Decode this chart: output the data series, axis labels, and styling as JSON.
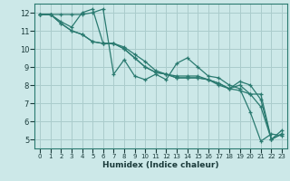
{
  "title": "",
  "xlabel": "Humidex (Indice chaleur)",
  "background_color": "#cce8e8",
  "grid_color": "#aacccc",
  "line_color": "#2a7a70",
  "xlim": [
    -0.5,
    23.5
  ],
  "ylim": [
    4.5,
    12.5
  ],
  "xticks": [
    0,
    1,
    2,
    3,
    4,
    5,
    6,
    7,
    8,
    9,
    10,
    11,
    12,
    13,
    14,
    15,
    16,
    17,
    18,
    19,
    20,
    21,
    22,
    23
  ],
  "yticks": [
    5,
    6,
    7,
    8,
    9,
    10,
    11,
    12
  ],
  "series": [
    {
      "x": [
        0,
        1,
        2,
        3,
        4,
        5,
        6,
        7,
        8,
        9,
        10,
        11,
        12,
        13,
        14,
        15,
        16,
        17,
        18,
        19,
        20,
        21,
        22,
        23
      ],
      "y": [
        11.9,
        11.9,
        11.9,
        11.9,
        11.9,
        12.0,
        12.2,
        8.6,
        9.4,
        8.5,
        8.3,
        8.6,
        8.3,
        9.2,
        9.5,
        9.0,
        8.5,
        8.4,
        8.0,
        7.8,
        6.5,
        4.9,
        5.3,
        5.2
      ]
    },
    {
      "x": [
        0,
        1,
        2,
        3,
        4,
        5,
        6,
        7,
        8,
        9,
        10,
        11,
        12,
        13,
        14,
        15,
        16,
        17,
        18,
        19,
        20,
        21,
        22,
        23
      ],
      "y": [
        11.9,
        11.9,
        11.5,
        11.2,
        12.0,
        12.2,
        10.3,
        10.3,
        10.1,
        9.7,
        9.3,
        8.8,
        8.6,
        8.5,
        8.5,
        8.5,
        8.3,
        8.0,
        7.8,
        8.2,
        8.0,
        7.2,
        5.0,
        5.3
      ]
    },
    {
      "x": [
        0,
        1,
        2,
        3,
        4,
        5,
        6,
        7,
        8,
        9,
        10,
        11,
        12,
        13,
        14,
        15,
        16,
        17,
        18,
        19,
        20,
        21,
        22,
        23
      ],
      "y": [
        11.9,
        11.9,
        11.4,
        11.0,
        10.8,
        10.4,
        10.3,
        10.3,
        10.0,
        9.5,
        9.0,
        8.7,
        8.6,
        8.4,
        8.4,
        8.4,
        8.3,
        8.1,
        7.8,
        8.0,
        7.5,
        6.8,
        5.0,
        5.3
      ]
    },
    {
      "x": [
        0,
        1,
        2,
        3,
        4,
        5,
        6,
        7,
        8,
        9,
        10,
        11,
        12,
        13,
        14,
        15,
        16,
        17,
        18,
        19,
        20,
        21,
        22,
        23
      ],
      "y": [
        11.9,
        11.9,
        11.4,
        11.0,
        10.8,
        10.4,
        10.3,
        10.3,
        10.0,
        9.5,
        9.0,
        8.7,
        8.6,
        8.4,
        8.4,
        8.4,
        8.3,
        8.1,
        7.8,
        7.7,
        7.5,
        7.5,
        5.0,
        5.5
      ]
    }
  ]
}
